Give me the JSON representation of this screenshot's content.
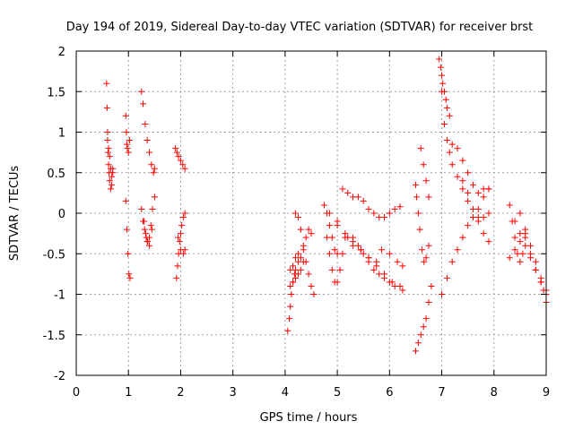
{
  "chart_data": {
    "type": "scatter",
    "title": "Day 194 of 2019, Sidereal Day-to-day VTEC variation (SDTVAR) for receiver brst",
    "xlabel": "GPS time / hours",
    "ylabel": "SDTVAR / TECUs",
    "xlim": [
      0,
      9
    ],
    "ylim": [
      -2,
      2
    ],
    "xticks": [
      "0",
      "1",
      "2",
      "3",
      "4",
      "5",
      "6",
      "7",
      "8",
      "9"
    ],
    "yticks": [
      "-2",
      "-1.5",
      "-1",
      "-0.5",
      "0",
      "0.5",
      "1",
      "1.5",
      "2"
    ],
    "grid": true,
    "marker": "+",
    "color": "#ff0000",
    "tracks": [
      {
        "x": [
          0.58,
          0.59,
          0.6,
          0.61,
          0.62,
          0.63,
          0.64,
          0.66,
          0.68,
          0.7
        ],
        "y": [
          1.6,
          1.3,
          1.0,
          0.75,
          0.6,
          0.5,
          0.4,
          0.3,
          0.35,
          0.55
        ]
      },
      {
        "x": [
          0.6,
          0.62,
          0.64,
          0.66,
          0.68,
          0.7
        ],
        "y": [
          0.9,
          0.8,
          0.7,
          0.55,
          0.45,
          0.5
        ]
      },
      {
        "x": [
          0.95,
          0.96,
          0.97,
          0.98,
          1.0,
          1.02
        ],
        "y": [
          1.2,
          1.0,
          0.85,
          0.8,
          0.75,
          0.9
        ]
      },
      {
        "x": [
          0.95,
          0.97,
          0.99,
          1.01,
          1.03
        ],
        "y": [
          0.15,
          -0.2,
          -0.5,
          -0.75,
          -0.8
        ]
      },
      {
        "x": [
          1.25,
          1.28,
          1.32,
          1.36,
          1.4,
          1.44,
          1.48,
          1.5
        ],
        "y": [
          1.5,
          1.35,
          1.1,
          0.9,
          0.75,
          0.6,
          0.5,
          0.55
        ]
      },
      {
        "x": [
          1.25,
          1.28,
          1.31,
          1.34,
          1.37,
          1.4,
          1.43,
          1.46,
          1.5
        ],
        "y": [
          0.05,
          -0.1,
          -0.2,
          -0.3,
          -0.35,
          -0.3,
          -0.15,
          0.05,
          0.2
        ]
      },
      {
        "x": [
          1.3,
          1.33,
          1.36,
          1.4,
          1.45
        ],
        "y": [
          -0.1,
          -0.25,
          -0.35,
          -0.4,
          -0.2
        ]
      },
      {
        "x": [
          1.9,
          1.93,
          1.96,
          2.0,
          2.04,
          2.08
        ],
        "y": [
          0.8,
          0.75,
          0.7,
          0.65,
          0.6,
          0.55
        ]
      },
      {
        "x": [
          1.92,
          1.94,
          1.96,
          1.98,
          2.0,
          2.02,
          2.05,
          2.08
        ],
        "y": [
          -0.8,
          -0.65,
          -0.5,
          -0.35,
          -0.25,
          -0.15,
          -0.05,
          0.0
        ]
      },
      {
        "x": [
          1.95,
          2.0,
          2.05,
          2.08
        ],
        "y": [
          -0.3,
          -0.45,
          -0.5,
          -0.45
        ]
      },
      {
        "x": [
          4.05,
          4.08,
          4.1,
          4.12,
          4.15,
          4.18,
          4.2,
          4.25
        ],
        "y": [
          -1.45,
          -1.3,
          -1.15,
          -1.0,
          -0.85,
          -0.75,
          -0.7,
          -0.6
        ]
      },
      {
        "x": [
          4.1,
          4.15,
          4.2,
          4.25,
          4.3,
          4.35,
          4.4,
          4.45,
          4.5
        ],
        "y": [
          -0.7,
          -0.65,
          -0.55,
          -0.5,
          -0.55,
          -0.45,
          -0.3,
          -0.2,
          -0.25
        ]
      },
      {
        "x": [
          4.2,
          4.25,
          4.3,
          4.35,
          4.4,
          4.45,
          4.5,
          4.55
        ],
        "y": [
          0.0,
          -0.05,
          -0.2,
          -0.4,
          -0.6,
          -0.75,
          -0.9,
          -1.0
        ]
      },
      {
        "x": [
          4.1,
          4.15,
          4.2,
          4.25,
          4.3,
          4.35
        ],
        "y": [
          -0.9,
          -0.85,
          -0.8,
          -0.75,
          -0.7,
          -0.6
        ]
      },
      {
        "x": [
          4.75,
          4.8,
          4.85,
          4.9,
          4.95,
          5.0
        ],
        "y": [
          0.1,
          0.0,
          -0.15,
          -0.3,
          -0.45,
          -0.5
        ]
      },
      {
        "x": [
          4.8,
          4.85,
          4.9,
          4.95,
          5.0,
          5.05,
          5.1
        ],
        "y": [
          -0.3,
          -0.5,
          -0.7,
          -0.85,
          -0.85,
          -0.7,
          -0.5
        ]
      },
      {
        "x": [
          4.85,
          5.0,
          5.15,
          5.3,
          5.45,
          5.6,
          5.75,
          5.9,
          6.05,
          6.2
        ],
        "y": [
          0.0,
          -0.15,
          -0.3,
          -0.4,
          -0.45,
          -0.55,
          -0.65,
          -0.75,
          -0.85,
          -0.9
        ]
      },
      {
        "x": [
          5.0,
          5.15,
          5.3,
          5.45,
          5.6,
          5.75,
          5.85,
          6.0,
          6.15,
          6.25
        ],
        "y": [
          -0.1,
          -0.25,
          -0.35,
          -0.45,
          -0.55,
          -0.6,
          -0.45,
          -0.5,
          -0.6,
          -0.65
        ]
      },
      {
        "x": [
          5.1,
          5.2,
          5.3,
          5.4,
          5.5,
          5.6,
          5.7,
          5.8,
          5.9,
          6.0,
          6.1,
          6.2
        ],
        "y": [
          0.3,
          0.25,
          0.2,
          0.2,
          0.15,
          0.05,
          0.0,
          -0.05,
          -0.05,
          0.0,
          0.05,
          0.08
        ]
      },
      {
        "x": [
          5.2,
          5.3,
          5.4,
          5.5,
          5.6,
          5.7,
          5.8,
          5.9,
          6.0,
          6.1,
          6.2,
          6.25
        ],
        "y": [
          -0.3,
          -0.3,
          -0.4,
          -0.5,
          -0.6,
          -0.7,
          -0.75,
          -0.8,
          -0.85,
          -0.9,
          -0.9,
          -0.95
        ]
      },
      {
        "x": [
          6.5,
          6.55,
          6.6,
          6.65,
          6.7,
          6.75,
          6.8
        ],
        "y": [
          -1.7,
          -1.6,
          -1.5,
          -1.4,
          -1.3,
          -1.1,
          -0.9
        ]
      },
      {
        "x": [
          6.5,
          6.52,
          6.55,
          6.58,
          6.62,
          6.66,
          6.7,
          6.75
        ],
        "y": [
          0.35,
          0.2,
          0.0,
          -0.2,
          -0.45,
          -0.6,
          -0.55,
          -0.4
        ]
      },
      {
        "x": [
          6.6,
          6.65,
          6.7,
          6.75
        ],
        "y": [
          0.8,
          0.6,
          0.4,
          0.2
        ]
      },
      {
        "x": [
          6.95,
          6.98,
          7.0,
          7.02,
          7.05,
          7.08,
          7.1,
          7.15
        ],
        "y": [
          1.9,
          1.8,
          1.7,
          1.6,
          1.5,
          1.4,
          1.3,
          1.2
        ]
      },
      {
        "x": [
          7.0,
          7.05,
          7.1,
          7.15,
          7.2,
          7.3,
          7.4,
          7.5,
          7.6,
          7.7,
          7.8,
          7.9
        ],
        "y": [
          1.5,
          1.1,
          0.9,
          0.75,
          0.6,
          0.45,
          0.3,
          0.15,
          0.05,
          -0.05,
          -0.05,
          0.0
        ]
      },
      {
        "x": [
          7.0,
          7.1,
          7.2,
          7.3,
          7.4,
          7.5,
          7.6,
          7.7,
          7.8,
          7.9
        ],
        "y": [
          -1.0,
          -0.8,
          -0.6,
          -0.45,
          -0.3,
          -0.15,
          -0.05,
          0.05,
          0.2,
          0.3
        ]
      },
      {
        "x": [
          7.2,
          7.3,
          7.4,
          7.5,
          7.6,
          7.7,
          7.8,
          7.9
        ],
        "y": [
          0.85,
          0.8,
          0.65,
          0.5,
          0.35,
          0.25,
          0.3,
          0.3
        ]
      },
      {
        "x": [
          7.4,
          7.5,
          7.6,
          7.7,
          7.8,
          7.9
        ],
        "y": [
          0.4,
          0.25,
          0.05,
          -0.1,
          -0.25,
          -0.35
        ]
      },
      {
        "x": [
          8.3,
          8.35,
          8.4,
          8.45,
          8.5,
          8.55
        ],
        "y": [
          0.1,
          -0.1,
          -0.3,
          -0.5,
          -0.6,
          -0.5
        ]
      },
      {
        "x": [
          8.4,
          8.5,
          8.6,
          8.7,
          8.8,
          8.9,
          9.0
        ],
        "y": [
          -0.1,
          -0.25,
          -0.4,
          -0.55,
          -0.7,
          -0.85,
          -1.0
        ]
      },
      {
        "x": [
          8.5,
          8.6,
          8.7,
          8.8,
          8.9,
          8.95,
          9.0
        ],
        "y": [
          0.0,
          -0.2,
          -0.4,
          -0.6,
          -0.8,
          -0.95,
          -1.1
        ]
      },
      {
        "x": [
          8.6,
          8.7,
          8.8,
          8.9,
          9.0
        ],
        "y": [
          -0.3,
          -0.5,
          -0.7,
          -0.85,
          -0.95
        ]
      },
      {
        "x": [
          8.3,
          8.4,
          8.5,
          8.6
        ],
        "y": [
          -0.55,
          -0.45,
          -0.35,
          -0.25
        ]
      }
    ]
  }
}
